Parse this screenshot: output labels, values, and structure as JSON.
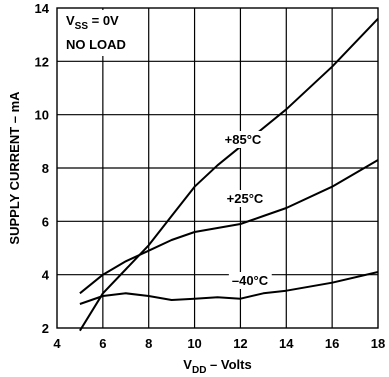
{
  "chart_data": {
    "type": "line",
    "title": "",
    "xlabel": {
      "main": "V",
      "sub": "DD",
      "rest": " – Volts"
    },
    "ylabel": "SUPPLY CURRENT – mA",
    "xlim": [
      4,
      18
    ],
    "ylim": [
      2,
      14
    ],
    "xticks": [
      4,
      6,
      8,
      10,
      12,
      14,
      16,
      18
    ],
    "yticks": [
      2,
      4,
      6,
      8,
      10,
      12,
      14
    ],
    "grid": true,
    "annotations": [
      {
        "main": "V",
        "sub": "SS",
        "rest": " = 0V"
      },
      {
        "main": "NO LOAD",
        "sub": "",
        "rest": ""
      }
    ],
    "series": [
      {
        "name": "+85°C",
        "x": [
          5,
          6,
          8,
          9,
          10,
          11,
          12,
          14,
          16,
          18
        ],
        "y": [
          1.9,
          3.3,
          5.1,
          6.2,
          7.3,
          8.1,
          8.8,
          10.2,
          11.8,
          13.6
        ]
      },
      {
        "name": "+25°C",
        "x": [
          5,
          6,
          7,
          8,
          9,
          10,
          11,
          12,
          13,
          14,
          16,
          18
        ],
        "y": [
          3.3,
          4.0,
          4.5,
          4.9,
          5.3,
          5.6,
          5.75,
          5.9,
          6.2,
          6.5,
          7.3,
          8.3
        ]
      },
      {
        "name": "–40°C",
        "x": [
          5,
          6,
          7,
          8,
          9,
          10,
          11,
          12,
          13,
          14,
          16,
          18
        ],
        "y": [
          2.9,
          3.2,
          3.3,
          3.2,
          3.05,
          3.1,
          3.15,
          3.1,
          3.3,
          3.4,
          3.7,
          4.1
        ]
      }
    ]
  }
}
